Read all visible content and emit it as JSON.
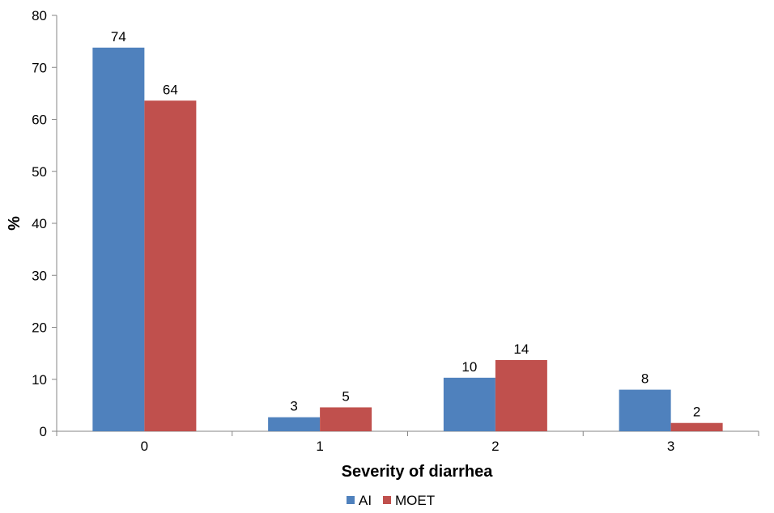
{
  "chart_data": {
    "type": "bar",
    "categories": [
      "0",
      "1",
      "2",
      "3"
    ],
    "series": [
      {
        "name": "AI",
        "values": [
          74,
          3,
          10,
          8
        ],
        "display_values": [
          73.8,
          2.7,
          10.3,
          8.0
        ],
        "color": "#4F81BD"
      },
      {
        "name": "MOET",
        "values": [
          64,
          5,
          14,
          2
        ],
        "display_values": [
          63.6,
          4.6,
          13.7,
          1.6
        ],
        "color": "#C0504D"
      }
    ],
    "title": "",
    "xlabel": "Severity of diarrhea",
    "ylabel": "%",
    "ylim": [
      0,
      80
    ],
    "yticks": [
      0,
      10,
      20,
      30,
      40,
      50,
      60,
      70,
      80
    ],
    "grid": false,
    "legend_position": "bottom-center"
  }
}
